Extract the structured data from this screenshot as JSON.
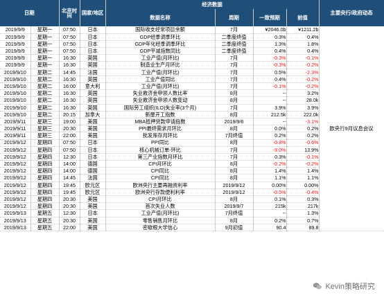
{
  "headers": {
    "date": "日期",
    "time": "北京时间",
    "country": "国家/地区",
    "economic_group": "经济数据",
    "indicator": "数据名称",
    "period": "周期",
    "forecast": "一致预期",
    "previous": "前值",
    "central_bank": "主要央行/政府动态"
  },
  "rows": [
    {
      "date": "2019/9/9",
      "weekday": "星期一",
      "time": "07:50",
      "country": "日本",
      "indicator": "国际收支经常项目余额",
      "period": "7月",
      "forecast": "¥2046.0b",
      "previous": "¥1211.2b",
      "fc_red": false,
      "pv_red": false
    },
    {
      "date": "2019/9/9",
      "weekday": "星期一",
      "time": "07:50",
      "country": "日本",
      "indicator": "GDP经季调季环比",
      "period": "二季度终值",
      "forecast": "0.3%",
      "previous": "0.4%",
      "fc_red": false,
      "pv_red": false
    },
    {
      "date": "2019/9/9",
      "weekday": "星期一",
      "time": "07:50",
      "country": "日本",
      "indicator": "GDP年化经季调季环比",
      "period": "二季度终值",
      "forecast": "1.3%",
      "previous": "1.8%",
      "fc_red": false,
      "pv_red": false
    },
    {
      "date": "2019/9/9",
      "weekday": "星期一",
      "time": "07:50",
      "country": "日本",
      "indicator": "GDP平减指数同比",
      "period": "二季度终值",
      "forecast": "0.4%",
      "previous": "0.4%",
      "fc_red": false,
      "pv_red": false
    },
    {
      "date": "2019/9/9",
      "weekday": "星期一",
      "time": "16:30",
      "country": "英国",
      "indicator": "工业产值(月环比)",
      "period": "7月",
      "forecast": "-0.3%",
      "previous": "-0.1%",
      "fc_red": true,
      "pv_red": true
    },
    {
      "date": "2019/9/9",
      "weekday": "星期一",
      "time": "16:30",
      "country": "英国",
      "indicator": "制造业生产月环比",
      "period": "7月",
      "forecast": "-0.3%",
      "previous": "-0.2%",
      "fc_red": true,
      "pv_red": true
    },
    {
      "date": "2019/9/10",
      "weekday": "星期二",
      "time": "14:45",
      "country": "法国",
      "indicator": "工业产值(月环比)",
      "period": "7月",
      "forecast": "0.5%",
      "previous": "-2.3%",
      "fc_red": false,
      "pv_red": true
    },
    {
      "date": "2019/9/10",
      "weekday": "星期二",
      "time": "16:30",
      "country": "英国",
      "indicator": "工业产值同比",
      "period": "7月",
      "forecast": "0.4%",
      "previous": "-0.2%",
      "fc_red": false,
      "pv_red": true
    },
    {
      "date": "2019/9/10",
      "weekday": "星期二",
      "time": "16:00",
      "country": "意大利",
      "indicator": "工业产值(月环比)",
      "period": "7月",
      "forecast": "-0.1%",
      "previous": "-0.2%",
      "fc_red": true,
      "pv_red": true
    },
    {
      "date": "2019/9/10",
      "weekday": "星期二",
      "time": "16:30",
      "country": "英国",
      "indicator": "失业救济金申领人数比率",
      "period": "8月",
      "forecast": "--",
      "previous": "3.2%",
      "fc_red": false,
      "pv_red": false
    },
    {
      "date": "2019/9/10",
      "weekday": "星期二",
      "time": "16:30",
      "country": "英国",
      "indicator": "失业救济金申领人数变动",
      "period": "8月",
      "forecast": "--",
      "previous": "28.0k",
      "fc_red": false,
      "pv_red": false
    },
    {
      "date": "2019/9/10",
      "weekday": "星期二",
      "time": "16:30",
      "country": "英国",
      "indicator": "国际劳工组织(ILO)失业率(3个月)",
      "period": "7月",
      "forecast": "3.9%",
      "previous": "3.9%",
      "fc_red": false,
      "pv_red": false
    },
    {
      "date": "2019/9/10",
      "weekday": "星期二",
      "time": "20:15",
      "country": "加拿大",
      "indicator": "新屋开工指数",
      "period": "8月",
      "forecast": "212.5k",
      "previous": "222.0k",
      "fc_red": false,
      "pv_red": false
    },
    {
      "date": "2019/9/11",
      "weekday": "星期三",
      "time": "19:00",
      "country": "美国",
      "indicator": "MBA抵押贷款申请指数",
      "period": "2019/9/6",
      "forecast": "--",
      "previous": "-3.1%",
      "fc_red": false,
      "pv_red": true
    },
    {
      "date": "2019/9/11",
      "weekday": "星期三",
      "time": "20:30",
      "country": "美国",
      "indicator": "PPI最终需求月环比",
      "period": "8月",
      "forecast": "0.0%",
      "previous": "0.2%",
      "fc_red": false,
      "pv_red": false
    },
    {
      "date": "2019/9/11",
      "weekday": "星期三",
      "time": "22:00",
      "country": "美国",
      "indicator": "批发库存月环比",
      "period": "7月终值",
      "forecast": "0.2%",
      "previous": "0.2%",
      "fc_red": false,
      "pv_red": false
    },
    {
      "date": "2019/9/12",
      "weekday": "星期四",
      "time": "07:50",
      "country": "日本",
      "indicator": "PPI同比",
      "period": "8月",
      "forecast": "-0.8%",
      "previous": "-0.6%",
      "fc_red": true,
      "pv_red": true
    },
    {
      "date": "2019/9/12",
      "weekday": "星期四",
      "time": "07:50",
      "country": "日本",
      "indicator": "核心机械订单-环比",
      "period": "7月",
      "forecast": "-9.0%",
      "previous": "13.9%",
      "fc_red": true,
      "pv_red": false
    },
    {
      "date": "2019/9/12",
      "weekday": "星期四",
      "time": "12:30",
      "country": "日本",
      "indicator": "第三产业指数月环比",
      "period": "7月",
      "forecast": "0.3%",
      "previous": "-0.1%",
      "fc_red": false,
      "pv_red": true
    },
    {
      "date": "2019/9/12",
      "weekday": "星期四",
      "time": "14:00",
      "country": "德国",
      "indicator": "CPI月环比",
      "period": "8月",
      "forecast": "-0.2%",
      "previous": "-0.2%",
      "fc_red": true,
      "pv_red": true
    },
    {
      "date": "2019/9/12",
      "weekday": "星期四",
      "time": "14:00",
      "country": "德国",
      "indicator": "CPI同比",
      "period": "8月",
      "forecast": "1.4%",
      "previous": "1.4%",
      "fc_red": false,
      "pv_red": false
    },
    {
      "date": "2019/9/12",
      "weekday": "星期四",
      "time": "14:45",
      "country": "法国",
      "indicator": "CPI同比",
      "period": "8月",
      "forecast": "1.1%",
      "previous": "1.1%",
      "fc_red": false,
      "pv_red": false
    },
    {
      "date": "2019/9/12",
      "weekday": "星期四",
      "time": "19:45",
      "country": "欧元区",
      "indicator": "欧洲央行主要再融资利率",
      "period": "2019/9/12",
      "forecast": "0.00%",
      "previous": "0.00%",
      "fc_red": false,
      "pv_red": false
    },
    {
      "date": "2019/9/12",
      "weekday": "星期四",
      "time": "19:45",
      "country": "欧元区",
      "indicator": "欧洲央行存款便利利率",
      "period": "2019/9/12",
      "forecast": "-0.5%",
      "previous": "-0.4%",
      "fc_red": true,
      "pv_red": true
    },
    {
      "date": "2019/9/12",
      "weekday": "星期四",
      "time": "20:30",
      "country": "美国",
      "indicator": "CPI月环比",
      "period": "8月",
      "forecast": "0.1%",
      "previous": "0.3%",
      "fc_red": false,
      "pv_red": false
    },
    {
      "date": "2019/9/12",
      "weekday": "星期四",
      "time": "20:30",
      "country": "美国",
      "indicator": "首次失业人数",
      "period": "2019/9/7",
      "forecast": "215k",
      "previous": "217k",
      "fc_red": false,
      "pv_red": false
    },
    {
      "date": "2019/9/13",
      "weekday": "星期五",
      "time": "12:30",
      "country": "日本",
      "indicator": "工业产值(月环比)",
      "period": "7月终值",
      "forecast": "--",
      "previous": "1.3%",
      "fc_red": false,
      "pv_red": false
    },
    {
      "date": "2019/9/13",
      "weekday": "星期五",
      "time": "20:30",
      "country": "美国",
      "indicator": "零售销售月环比",
      "period": "8月",
      "forecast": "0.2%",
      "previous": "0.7%",
      "fc_red": false,
      "pv_red": false
    },
    {
      "date": "2019/9/13",
      "weekday": "星期五",
      "time": "22:00",
      "country": "美国",
      "indicator": "密歇根大学信心",
      "period": "9月初值",
      "forecast": "90.4",
      "previous": "89.8",
      "fc_red": false,
      "pv_red": false
    }
  ],
  "central_bank_note": "欧央行9月议息会议",
  "watermark": {
    "text": "Kevin策略研究",
    "icon": "wechat-icon"
  },
  "colors": {
    "header_bg": "#1f4e79",
    "header_text": "#ffffff",
    "negative": "#e8141a",
    "grid": "#c8c8c8"
  }
}
